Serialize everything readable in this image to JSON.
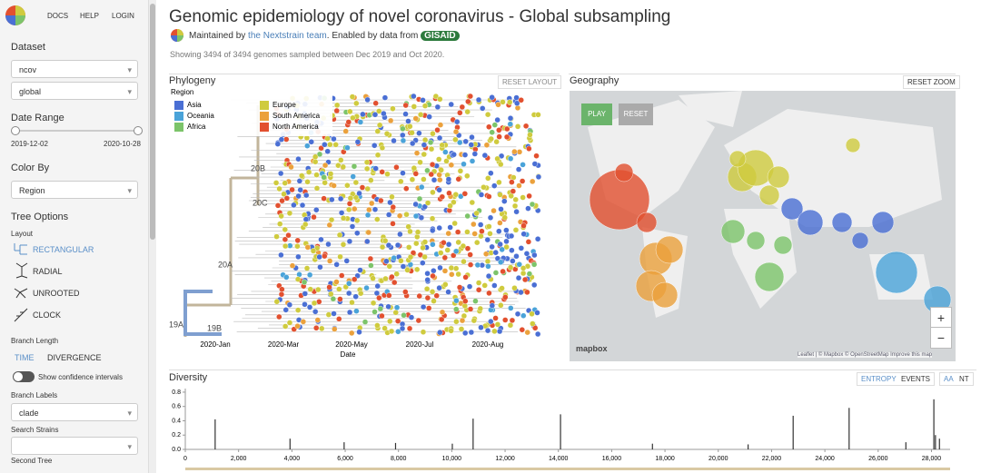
{
  "nav": {
    "links": [
      "DOCS",
      "HELP",
      "LOGIN"
    ]
  },
  "sidebar": {
    "dataset_label": "Dataset",
    "dataset": [
      "ncov",
      "global"
    ],
    "date_range_label": "Date Range",
    "date_start": "2019-12-02",
    "date_end": "2020-10-28",
    "color_by_label": "Color By",
    "color_by": "Region",
    "tree_options_label": "Tree Options",
    "layout_label": "Layout",
    "layouts": [
      "RECTANGULAR",
      "RADIAL",
      "UNROOTED",
      "CLOCK"
    ],
    "branch_length_label": "Branch Length",
    "branch_lengths": [
      "TIME",
      "DIVERGENCE"
    ],
    "confidence_label": "Show confidence intervals",
    "branch_labels_label": "Branch Labels",
    "branch_labels": "clade",
    "search_label": "Search Strains",
    "second_tree_label": "Second Tree"
  },
  "header": {
    "title": "Genomic epidemiology of novel coronavirus - Global subsampling",
    "maintained_by": "Maintained by",
    "team": "the Nextstrain team",
    "enabled_by": ". Enabled by data from",
    "gisaid": "GISAID",
    "showing": "Showing 3494 of 3494 genomes sampled between Dec 2019 and Oct 2020."
  },
  "phylogeny": {
    "title": "Phylogeny",
    "reset": "RESET LAYOUT",
    "legend_title": "Region",
    "legend": [
      {
        "name": "Asia",
        "color": "#4a6fd4"
      },
      {
        "name": "Oceania",
        "color": "#4aa3d9"
      },
      {
        "name": "Africa",
        "color": "#7cc46a"
      },
      {
        "name": "Europe",
        "color": "#cfcb3e"
      },
      {
        "name": "South America",
        "color": "#eba13c"
      },
      {
        "name": "North America",
        "color": "#e2502f"
      }
    ],
    "clades": [
      "19A",
      "19B",
      "20A",
      "20B",
      "20C"
    ],
    "axis_labels": [
      "2020-Jan",
      "2020-Mar",
      "2020-May",
      "2020-Jul",
      "2020-Aug"
    ],
    "axis_title": "Date"
  },
  "geography": {
    "title": "Geography",
    "reset_zoom": "RESET ZOOM",
    "play": "PLAY",
    "reset": "RESET",
    "zoom_in": "+",
    "zoom_out": "−",
    "logo": "mapbox",
    "attribution": "Leaflet | © Mapbox © OpenStreetMap Improve this map"
  },
  "diversity": {
    "title": "Diversity",
    "buttons": [
      "ENTROPY",
      "EVENTS",
      "AA",
      "NT"
    ]
  },
  "chart_data": {
    "type": "bar",
    "color": "#333333",
    "x": [
      1120,
      3930,
      5960,
      7890,
      10020,
      10800,
      14080,
      17530,
      21120,
      22810,
      24910,
      27040,
      28090,
      28150,
      28300
    ],
    "values": [
      0.42,
      0.15,
      0.1,
      0.09,
      0.08,
      0.43,
      0.49,
      0.08,
      0.07,
      0.47,
      0.58,
      0.1,
      0.7,
      0.2,
      0.15
    ],
    "xlim": [
      0,
      28700
    ],
    "ylim": [
      0,
      0.85
    ],
    "yticks": [
      {
        "value": 0,
        "label": "0.0"
      },
      0.2,
      0.4,
      0.6,
      0.8
    ],
    "xticks": [
      0,
      {
        "value": 2000,
        "label": "2,000"
      },
      {
        "value": 4000,
        "label": "4,000"
      },
      {
        "value": 6000,
        "label": "6,000"
      },
      {
        "value": 8000,
        "label": "8,000"
      },
      {
        "value": 10000,
        "label": "10,000"
      },
      {
        "value": 12000,
        "label": "12,000"
      },
      {
        "value": 14000,
        "label": "14,000"
      },
      {
        "value": 16000,
        "label": "16,000"
      },
      {
        "value": 18000,
        "label": "18,000"
      },
      {
        "value": 20000,
        "label": "20,000"
      },
      {
        "value": 22000,
        "label": "22,000"
      },
      {
        "value": 24000,
        "label": "24,000"
      },
      {
        "value": 26000,
        "label": "26,000"
      },
      {
        "value": 28000,
        "label": "28,000"
      }
    ]
  }
}
